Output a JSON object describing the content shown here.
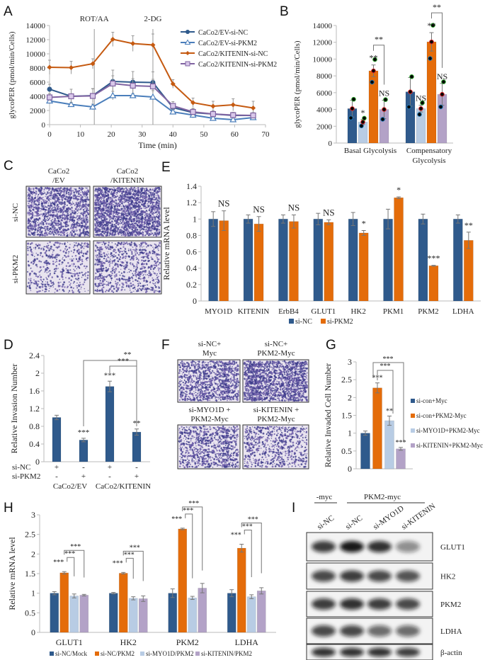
{
  "colors": {
    "dark_blue": "#2f5a8c",
    "light_blue": "#b8cce4",
    "orange": "#e46c0a",
    "purple": "#b3a2c7",
    "axis": "#bbbbbb"
  },
  "panels": {
    "A": "A",
    "B": "B",
    "C": "C",
    "D": "D",
    "E": "E",
    "F": "F",
    "G": "G",
    "H": "H",
    "I": "I"
  },
  "chart_data": [
    {
      "id": "A",
      "type": "line",
      "xlabel": "Time (min)",
      "ylabel": "glycoPER (pmol/min/Cells)",
      "xlim": [
        0,
        70
      ],
      "ylim": [
        0,
        14000
      ],
      "xticks": [
        "0",
        "10",
        "20",
        "30",
        "40",
        "50",
        "60",
        "70"
      ],
      "yticks": [
        "0",
        "2000",
        "4000",
        "6000",
        "8000",
        "10000",
        "12000",
        "14000"
      ],
      "annotations": [
        {
          "label": "ROT/AA",
          "x": 14.5
        },
        {
          "label": "2-DG",
          "x": 33.5
        }
      ],
      "x": [
        0,
        7,
        14,
        20.5,
        27,
        33.5,
        40,
        46.5,
        53,
        59.5,
        66
      ],
      "legend_position": "top-right",
      "series": [
        {
          "name": "CaCo2/EV-si-NC",
          "color": "#2f5a8c",
          "marker": "circle",
          "values": [
            5000,
            4000,
            4100,
            6100,
            6000,
            5950,
            2400,
            1700,
            1500,
            1300,
            1300
          ],
          "errors": [
            700,
            1000,
            1000,
            1600,
            1500,
            1500,
            600,
            500,
            400,
            350,
            300
          ]
        },
        {
          "name": "CaCo2/EV-si-PKM2",
          "color": "#4a7ebb",
          "marker": "triangle",
          "values": [
            3350,
            2850,
            2500,
            4100,
            4100,
            3900,
            1800,
            1350,
            900,
            700,
            1000
          ],
          "errors": [
            400,
            300,
            400,
            600,
            300,
            900,
            300,
            400,
            300,
            250,
            250
          ]
        },
        {
          "name": "CaCo2/KITENIN-si-NC",
          "color": "#c55a11",
          "marker": "diamond",
          "values": [
            8100,
            8050,
            8600,
            12050,
            11450,
            11250,
            5750,
            3100,
            2600,
            2800,
            2350
          ],
          "errors": [
            1000,
            900,
            700,
            1000,
            1100,
            1550,
            600,
            650,
            700,
            850,
            950
          ]
        },
        {
          "name": "CaCo2/KITENIN-si-PKM2",
          "color": "#8064a2",
          "marker": "square",
          "values": [
            3850,
            4000,
            4050,
            5800,
            5500,
            5400,
            2650,
            1800,
            1500,
            1350,
            1300
          ],
          "errors": [
            500,
            1000,
            1000,
            1100,
            1000,
            1000,
            600,
            500,
            450,
            400,
            400
          ]
        }
      ]
    },
    {
      "id": "B",
      "type": "bar",
      "ylabel": "glycoPER (pmol/min/Cells)",
      "ylim": [
        0,
        14000
      ],
      "yticks": [
        "0",
        "2000",
        "4000",
        "6000",
        "8000",
        "10000",
        "12000",
        "14000"
      ],
      "categories": [
        "Basal Glycolysis",
        "Compensatory Glycolysis"
      ],
      "series_colors": [
        "#2f5a8c",
        "#b8cce4",
        "#e46c0a",
        "#b3a2c7"
      ],
      "groups": [
        {
          "values": [
            4100,
            2500,
            8600,
            4000
          ],
          "errors": [
            1000,
            300,
            700,
            1100
          ],
          "labels": [
            "",
            "*",
            "**",
            "NS"
          ],
          "bracket": "**"
        },
        {
          "values": [
            6100,
            4100,
            12050,
            5800
          ],
          "errors": [
            1700,
            400,
            1100,
            1300
          ],
          "labels": [
            "",
            "NS",
            "**",
            "NS"
          ],
          "bracket": "**"
        }
      ]
    },
    {
      "id": "E",
      "type": "bar",
      "ylabel": "Relative mRNA level",
      "ylim": [
        0,
        1.4
      ],
      "yticks": [
        "0",
        "0.2",
        "0.4",
        "0.6",
        "0.8",
        "1",
        "1.2",
        "1.4"
      ],
      "categories": [
        "MYO1D",
        "KITENIN",
        "ErbB4",
        "GLUT1",
        "HK2",
        "PKM1",
        "PKM2",
        "LDHA"
      ],
      "legend_position": "bottom",
      "series": [
        {
          "name": "si-NC",
          "color": "#2f5a8c",
          "values": [
            1,
            1,
            1,
            1,
            1,
            1,
            1,
            1
          ],
          "errors": [
            0.09,
            0.05,
            0.05,
            0.07,
            0.08,
            0.12,
            0.06,
            0.05
          ]
        },
        {
          "name": "si-PKM2",
          "color": "#e46c0a",
          "values": [
            0.98,
            0.94,
            0.97,
            0.96,
            0.83,
            1.26,
            0.43,
            0.74
          ],
          "errors": [
            0.12,
            0.09,
            0.08,
            0.03,
            0.03,
            0.01,
            0.005,
            0.1
          ]
        }
      ],
      "labels": [
        "NS",
        "NS",
        "NS",
        "NS",
        "*",
        "*",
        "***",
        "**"
      ]
    },
    {
      "id": "D",
      "type": "bar",
      "ylabel": "Relative Invasion Number",
      "ylim": [
        0,
        2.4
      ],
      "yticks": [
        "0",
        "0.4",
        "0.8",
        "1.2",
        "1.6",
        "2",
        "2.4"
      ],
      "values": [
        1.0,
        0.49,
        1.7,
        0.67
      ],
      "errors": [
        0.05,
        0.04,
        0.12,
        0.07
      ],
      "labels": [
        "",
        "***",
        "***",
        "**"
      ],
      "brackets": [
        "**",
        "***"
      ],
      "rows": [
        {
          "name": "si-NC",
          "marks": [
            "+",
            "-",
            "+",
            "-"
          ]
        },
        {
          "name": "si-PKM2",
          "marks": [
            "-",
            "+",
            "-",
            "+"
          ]
        }
      ],
      "groups": [
        "CaCo2/EV",
        "CaCo2/KITENIN"
      ]
    },
    {
      "id": "G",
      "type": "bar",
      "ylabel": "Relative Invaded Cell Number",
      "ylim": [
        0,
        3
      ],
      "yticks": [
        "0",
        "0.5",
        "1",
        "1.5",
        "2",
        "2.5",
        "3"
      ],
      "series": [
        {
          "name": "si-con+Myc",
          "color": "#2f5a8c",
          "value": 1.0,
          "error": 0.06
        },
        {
          "name": "si-con+PKM2-Myc",
          "color": "#e46c0a",
          "value": 2.27,
          "error": 0.14
        },
        {
          "name": "si-MYO1D+PKM2-Myc",
          "color": "#b8cce4",
          "value": 1.35,
          "error": 0.13
        },
        {
          "name": "si-KITENIN+PKM2-Myc",
          "color": "#b3a2c7",
          "value": 0.56,
          "error": 0.04
        }
      ],
      "labels": [
        "",
        "***",
        "**",
        "***"
      ],
      "brackets": [
        "***",
        "***"
      ],
      "legend_position": "right"
    },
    {
      "id": "H",
      "type": "bar",
      "ylabel": "Relative mRNA level",
      "ylim": [
        0,
        3
      ],
      "yticks": [
        "0",
        "0.5",
        "1",
        "1.5",
        "2",
        "2.5",
        "3"
      ],
      "categories": [
        "GLUT1",
        "HK2",
        "PKM2",
        "LDHA"
      ],
      "legend_position": "bottom",
      "series": [
        {
          "name": "si-NC/Mock",
          "color": "#2f5a8c",
          "values": [
            1,
            1,
            1,
            1
          ],
          "errors": [
            0.04,
            0.02,
            0.11,
            0.09
          ]
        },
        {
          "name": "si-NC/PKM2",
          "color": "#e46c0a",
          "values": [
            1.52,
            1.51,
            2.64,
            2.15
          ],
          "errors": [
            0.03,
            0.02,
            0.02,
            0.1
          ]
        },
        {
          "name": "si-MYO1D/PKM2",
          "color": "#b8cce4",
          "values": [
            0.93,
            0.87,
            0.88,
            0.91
          ],
          "errors": [
            0.05,
            0.04,
            0.04,
            0.05
          ]
        },
        {
          "name": "si-KITENIN/PKM2",
          "color": "#b3a2c7",
          "values": [
            0.95,
            0.86,
            1.13,
            1.06
          ],
          "errors": [
            0.02,
            0.07,
            0.12,
            0.08
          ]
        }
      ],
      "labels": [
        "***",
        "***",
        "***",
        "***"
      ],
      "brackets": [
        "***",
        "***"
      ]
    }
  ],
  "panel_C": {
    "columns": [
      "CaCo2",
      "/EV",
      "CaCo2",
      "/KITENIN"
    ],
    "rows": [
      "si-NC",
      "si-PKM2"
    ]
  },
  "panel_F": {
    "top": [
      [
        "si-NC+",
        "Myc"
      ],
      [
        "si-NC+",
        "PKM2-Myc"
      ]
    ],
    "bottom": [
      [
        "si-MYO1D +",
        "PKM2-Myc"
      ],
      [
        "si-KITENIN +",
        "PKM2-Myc"
      ]
    ]
  },
  "panel_I": {
    "header_left": "-myc",
    "header_right": "PKM2-myc",
    "lanes": [
      "si-NC",
      "si-NC",
      "si-MYO1D",
      "si-KITENIN"
    ],
    "proteins": [
      "GLUT1",
      "HK2",
      "PKM2",
      "LDHA",
      "β-actin"
    ],
    "intensities": [
      [
        0.8,
        0.95,
        0.85,
        0.45
      ],
      [
        0.75,
        0.8,
        0.75,
        0.7
      ],
      [
        0.8,
        0.85,
        0.8,
        0.75
      ],
      [
        0.75,
        0.75,
        0.6,
        0.6
      ],
      [
        0.85,
        0.85,
        0.85,
        0.8
      ]
    ]
  }
}
